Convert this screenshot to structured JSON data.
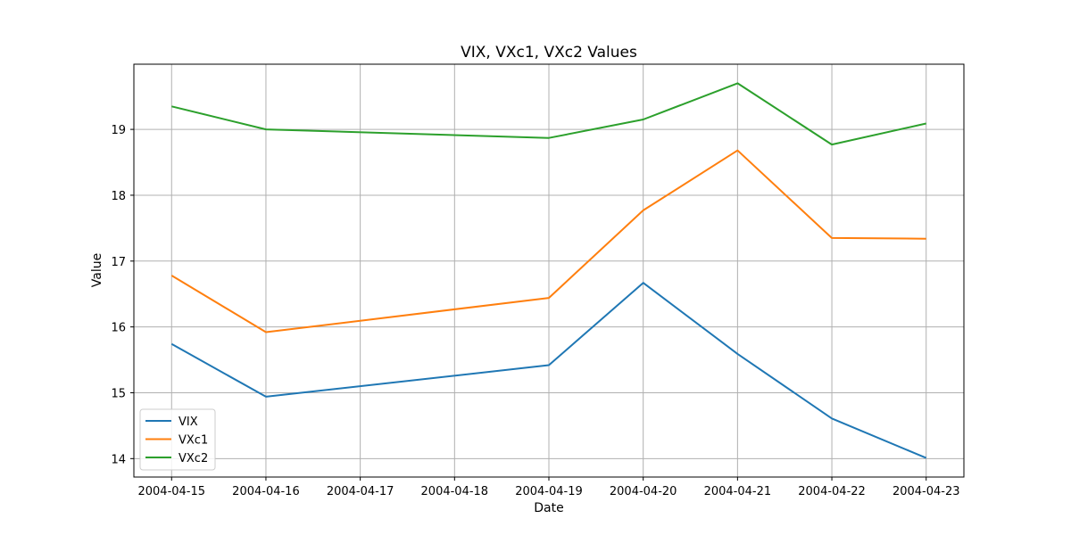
{
  "chart_data": {
    "type": "line",
    "title": "VIX, VXc1, VXc2 Values",
    "xlabel": "Date",
    "ylabel": "Value",
    "x": [
      "2004-04-15",
      "2004-04-16",
      "2004-04-19",
      "2004-04-20",
      "2004-04-21",
      "2004-04-22",
      "2004-04-23"
    ],
    "x_ticks": [
      "2004-04-15",
      "2004-04-16",
      "2004-04-17",
      "2004-04-18",
      "2004-04-19",
      "2004-04-20",
      "2004-04-21",
      "2004-04-22",
      "2004-04-23"
    ],
    "xlim": [
      "2004-04-14.6",
      "2004-04-23.4"
    ],
    "y_ticks": [
      14,
      15,
      16,
      17,
      18,
      19
    ],
    "ylim": [
      13.72,
      19.99
    ],
    "grid": true,
    "legend": "bottom-left",
    "series": [
      {
        "name": "VIX",
        "color": "#1f77b4",
        "values": [
          15.74,
          14.94,
          15.42,
          16.67,
          15.59,
          14.61,
          14.01
        ]
      },
      {
        "name": "VXc1",
        "color": "#ff7f0e",
        "values": [
          16.78,
          15.92,
          16.44,
          17.77,
          18.68,
          17.35,
          17.34
        ]
      },
      {
        "name": "VXc2",
        "color": "#2ca02c",
        "values": [
          19.35,
          19.0,
          18.87,
          19.15,
          19.7,
          18.77,
          19.09
        ]
      }
    ]
  }
}
